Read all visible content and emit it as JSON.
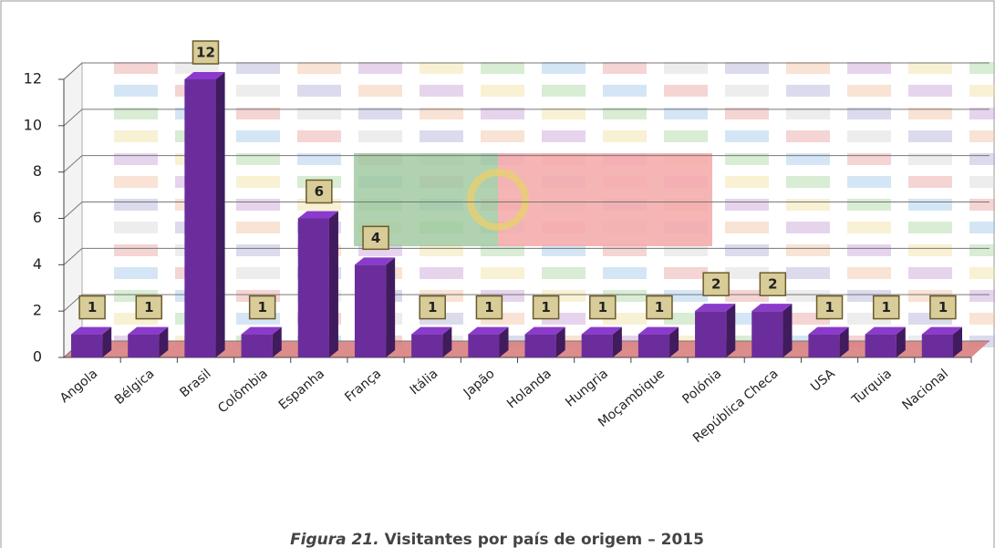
{
  "chart_data": {
    "type": "bar3d",
    "caption_label": "Figura 21.",
    "title": "Visitantes por país de origem – 2015",
    "categories": [
      "Angola",
      "Bélgica",
      "Brasil",
      "Colômbia",
      "Espanha",
      "França",
      "Itália",
      "Japão",
      "Holanda",
      "Hungria",
      "Moçambique",
      "Polónia",
      "República Checa",
      "USA",
      "Turquia",
      "Nacional"
    ],
    "values": [
      1,
      1,
      12,
      1,
      6,
      4,
      1,
      1,
      1,
      1,
      1,
      2,
      2,
      1,
      1,
      1
    ],
    "color": "#6b2d9c",
    "ylim": [
      0,
      12
    ],
    "yticks": [
      0,
      2,
      4,
      6,
      8,
      10,
      12
    ],
    "grid": true
  }
}
